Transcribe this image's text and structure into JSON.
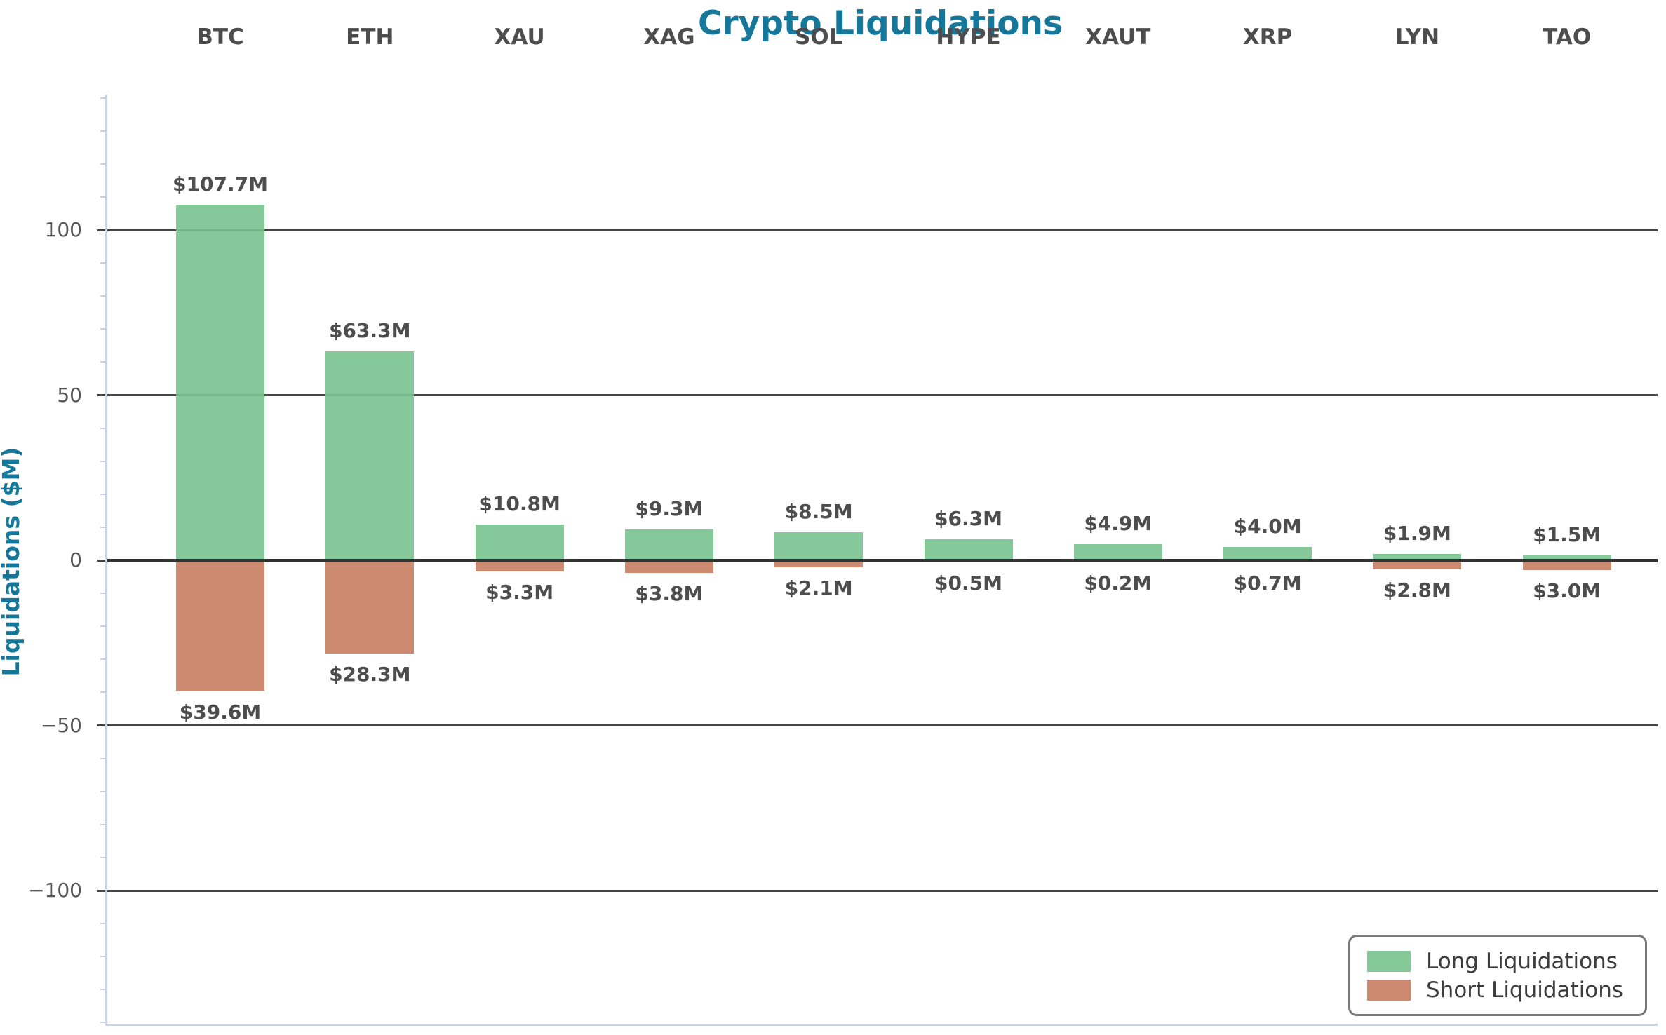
{
  "title": "Crypto Liquidations",
  "y_axis": {
    "label": "Liquidations ($M)",
    "tick_labels": [
      "100",
      "50",
      "0",
      "−50",
      "−100"
    ],
    "tick_values": [
      100,
      50,
      0,
      -50,
      -100
    ]
  },
  "legend": {
    "items": [
      {
        "label": "Long Liquidations",
        "color": "#86c998"
      },
      {
        "label": "Short Liquidations",
        "color": "#cd8a70"
      }
    ]
  },
  "colors": {
    "title_teal": "#15789a",
    "long_green": "#86c998",
    "short_salmon": "#cd8a70",
    "gridline": "#454545",
    "zero_line": "#333333",
    "text_gray": "#4d4d4d"
  },
  "chart_data": {
    "type": "bar",
    "title": "Crypto Liquidations",
    "xlabel": "",
    "ylabel": "Liquidations ($M)",
    "categories": [
      "BTC",
      "ETH",
      "XAU",
      "XAG",
      "SOL",
      "HYPE",
      "XAUT",
      "XRP",
      "LYN",
      "TAO"
    ],
    "series": [
      {
        "name": "Long Liquidations",
        "direction": "positive",
        "color": "#86c998",
        "values": [
          107.7,
          63.3,
          10.8,
          9.3,
          8.5,
          6.3,
          4.9,
          4.0,
          1.9,
          1.5
        ],
        "labels": [
          "$107.7M",
          "$63.3M",
          "$10.8M",
          "$9.3M",
          "$8.5M",
          "$6.3M",
          "$4.9M",
          "$4.0M",
          "$1.9M",
          "$1.5M"
        ]
      },
      {
        "name": "Short Liquidations",
        "direction": "negative",
        "color": "#cd8a70",
        "values": [
          39.6,
          28.3,
          3.3,
          3.8,
          2.1,
          0.5,
          0.2,
          0.7,
          2.8,
          3.0
        ],
        "labels": [
          "$39.6M",
          "$28.3M",
          "$3.3M",
          "$3.8M",
          "$2.1M",
          "$0.5M",
          "$0.2M",
          "$0.7M",
          "$2.8M",
          "$3.0M"
        ]
      }
    ],
    "ylim": [
      -140,
      141
    ],
    "yticks": [
      -100,
      -50,
      0,
      50,
      100
    ],
    "grid": true,
    "legend_position": "lower right"
  }
}
